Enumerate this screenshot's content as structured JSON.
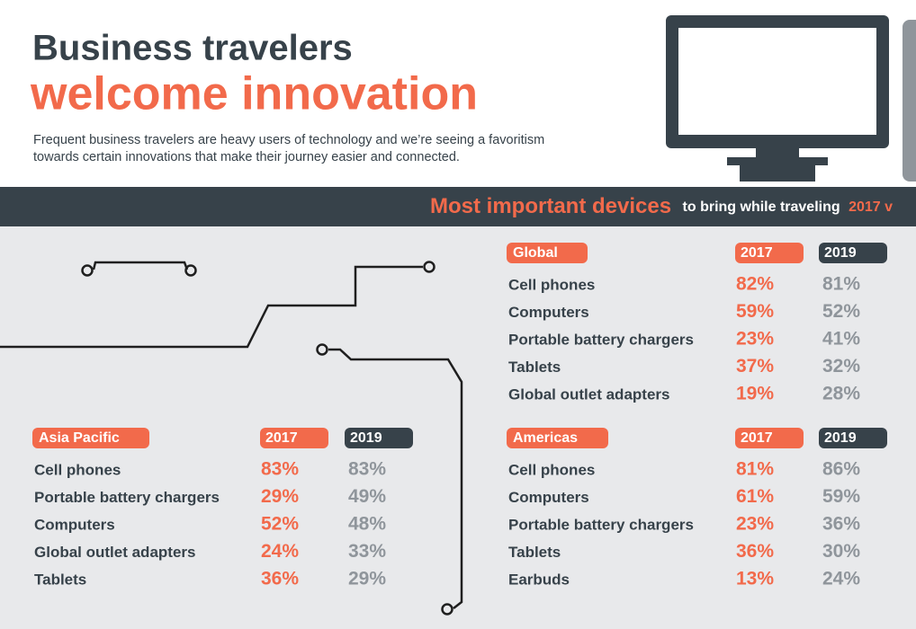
{
  "header": {
    "title_line1": "Business travelers",
    "title_line2": "welcome innovation",
    "description_line1": "Frequent business travelers are heavy users of technology and we’re seeing a favoritism",
    "description_line2": "towards certain innovations that make their journey easier and connected."
  },
  "banner": {
    "bold": "Most important devices",
    "rest": "to bring while traveling",
    "years": "2017 v"
  },
  "regions": [
    {
      "name": "Global",
      "year1": "2017",
      "year2": "2019",
      "rows": [
        {
          "device": "Cell phones",
          "v1": "82%",
          "v2": "81%"
        },
        {
          "device": "Computers",
          "v1": "59%",
          "v2": "52%"
        },
        {
          "device": "Portable battery chargers",
          "v1": "23%",
          "v2": "41%"
        },
        {
          "device": "Tablets",
          "v1": "37%",
          "v2": "32%"
        },
        {
          "device": "Global outlet adapters",
          "v1": "19%",
          "v2": "28%"
        }
      ]
    },
    {
      "name": "Asia Pacific",
      "year1": "2017",
      "year2": "2019",
      "rows": [
        {
          "device": "Cell phones",
          "v1": "83%",
          "v2": "83%"
        },
        {
          "device": "Portable battery chargers",
          "v1": "29%",
          "v2": "49%"
        },
        {
          "device": "Computers",
          "v1": "52%",
          "v2": "48%"
        },
        {
          "device": "Global outlet adapters",
          "v1": "24%",
          "v2": "33%"
        },
        {
          "device": "Tablets",
          "v1": "36%",
          "v2": "29%"
        }
      ]
    },
    {
      "name": "Americas",
      "year1": "2017",
      "year2": "2019",
      "rows": [
        {
          "device": "Cell phones",
          "v1": "81%",
          "v2": "86%"
        },
        {
          "device": "Computers",
          "v1": "61%",
          "v2": "59%"
        },
        {
          "device": "Portable battery chargers",
          "v1": "23%",
          "v2": "36%"
        },
        {
          "device": "Tablets",
          "v1": "36%",
          "v2": "30%"
        },
        {
          "device": "Earbuds",
          "v1": "13%",
          "v2": "24%"
        }
      ]
    }
  ]
}
